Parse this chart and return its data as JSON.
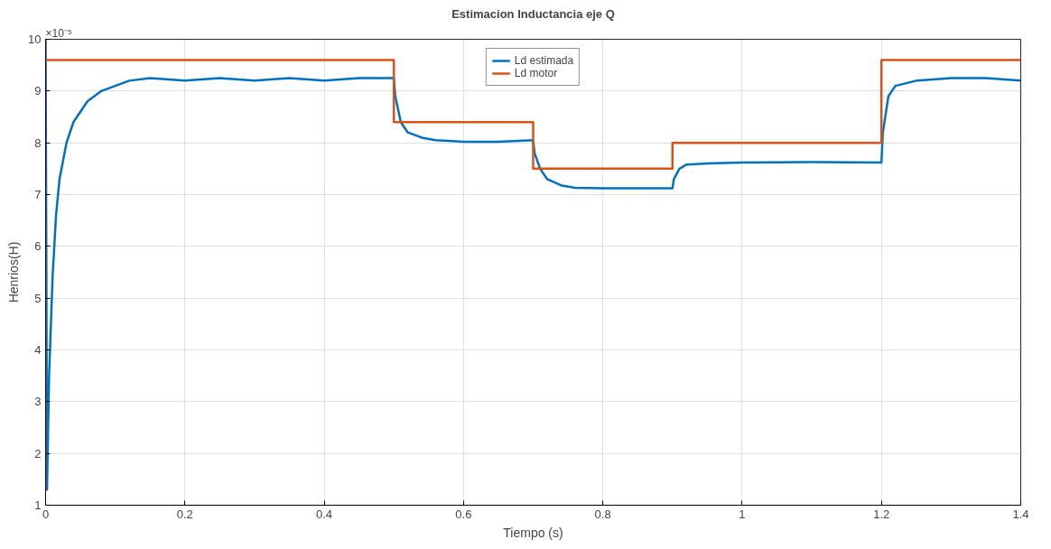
{
  "chart_data": {
    "type": "line",
    "title": "Estimacion Inductancia eje Q",
    "xlabel": "Tiempo (s)",
    "ylabel": "Henrios(H)",
    "annotations": [
      "×10⁻⁵"
    ],
    "xlim": [
      0,
      1.4
    ],
    "xticks": [
      0,
      0.2,
      0.4,
      0.6,
      0.8,
      1,
      1.2,
      1.4
    ],
    "ylim": [
      1,
      10
    ],
    "yticks": [
      1,
      2,
      3,
      4,
      5,
      6,
      7,
      8,
      9,
      10
    ],
    "grid": true,
    "legend": "top",
    "series": [
      {
        "name": "Ld estimada",
        "color": "#0072bd",
        "x": [
          0,
          0.001,
          0.002,
          0.005,
          0.01,
          0.015,
          0.02,
          0.03,
          0.04,
          0.05,
          0.06,
          0.07,
          0.08,
          0.1,
          0.12,
          0.15,
          0.2,
          0.25,
          0.3,
          0.35,
          0.4,
          0.45,
          0.5,
          0.502,
          0.51,
          0.52,
          0.54,
          0.56,
          0.6,
          0.65,
          0.7,
          0.702,
          0.71,
          0.72,
          0.74,
          0.76,
          0.8,
          0.85,
          0.9,
          0.902,
          0.91,
          0.92,
          0.95,
          1.0,
          1.1,
          1.2,
          1.202,
          1.21,
          1.22,
          1.25,
          1.3,
          1.35,
          1.4
        ],
        "values": [
          10,
          6,
          1.3,
          3.5,
          5.4,
          6.6,
          7.3,
          8.0,
          8.4,
          8.6,
          8.8,
          8.9,
          9.0,
          9.1,
          9.2,
          9.25,
          9.2,
          9.25,
          9.2,
          9.25,
          9.2,
          9.25,
          9.25,
          8.9,
          8.4,
          8.2,
          8.1,
          8.05,
          8.02,
          8.02,
          8.05,
          7.8,
          7.5,
          7.3,
          7.18,
          7.13,
          7.12,
          7.12,
          7.12,
          7.3,
          7.5,
          7.58,
          7.6,
          7.62,
          7.63,
          7.62,
          8.2,
          8.9,
          9.1,
          9.2,
          9.25,
          9.25,
          9.2
        ]
      },
      {
        "name": "Ld motor",
        "color": "#d95319",
        "type": "step",
        "x": [
          0,
          0.5,
          0.7,
          0.9,
          1.2,
          1.4
        ],
        "values": [
          9.6,
          8.4,
          7.5,
          8.0,
          9.6,
          9.6
        ]
      }
    ]
  }
}
